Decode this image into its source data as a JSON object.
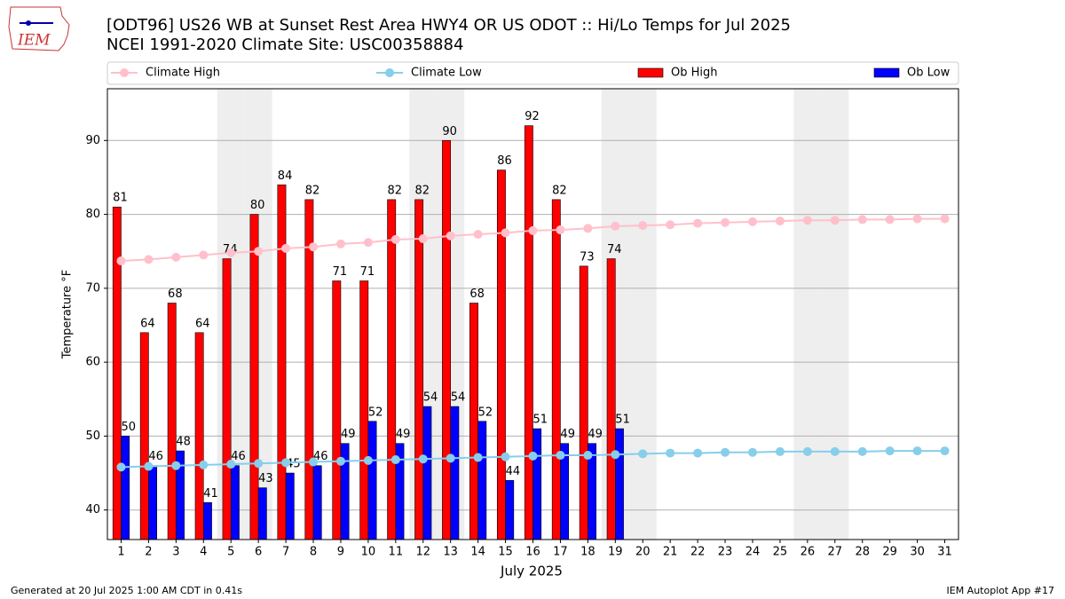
{
  "chart_data": {
    "type": "bar",
    "title": "[ODT96] US26 WB at Sunset Rest Area HWY4 OR US ODOT :: Hi/Lo Temps for Jul 2025",
    "subtitle": "NCEI 1991-2020 Climate Site: USC00358884",
    "x_label": "July 2025",
    "y_label": "Temperature °F",
    "logo_text": "IEM",
    "footer_left": "Generated at 20 Jul 2025 1:00 AM CDT in 0.41s",
    "footer_right": "IEM Autoplot App #17",
    "x": [
      1,
      2,
      3,
      4,
      5,
      6,
      7,
      8,
      9,
      10,
      11,
      12,
      13,
      14,
      15,
      16,
      17,
      18,
      19,
      20,
      21,
      22,
      23,
      24,
      25,
      26,
      27,
      28,
      29,
      30,
      31
    ],
    "xlim": [
      0.5,
      31.5
    ],
    "xticks": [
      1,
      2,
      3,
      4,
      5,
      6,
      7,
      8,
      9,
      10,
      11,
      12,
      13,
      14,
      15,
      16,
      17,
      18,
      19,
      20,
      21,
      22,
      23,
      24,
      25,
      26,
      27,
      28,
      29,
      30,
      31
    ],
    "ylim": [
      36,
      97
    ],
    "yticks": [
      40,
      50,
      60,
      70,
      80,
      90
    ],
    "grid": true,
    "shaded_days": [
      5,
      6,
      12,
      13,
      19,
      20,
      26,
      27
    ],
    "legend_position": "top",
    "series": [
      {
        "name": "Climate High",
        "type": "line",
        "color": "#ffc0cb",
        "values": [
          73.7,
          73.9,
          74.2,
          74.5,
          74.8,
          75.0,
          75.4,
          75.6,
          76.0,
          76.2,
          76.6,
          76.7,
          77.1,
          77.3,
          77.5,
          77.8,
          77.9,
          78.1,
          78.4,
          78.5,
          78.6,
          78.8,
          78.9,
          79.0,
          79.1,
          79.2,
          79.2,
          79.3,
          79.3,
          79.4,
          79.4
        ]
      },
      {
        "name": "Climate Low",
        "type": "line",
        "color": "#87ceeb",
        "values": [
          45.8,
          45.9,
          46.0,
          46.1,
          46.2,
          46.3,
          46.4,
          46.5,
          46.6,
          46.7,
          46.8,
          46.9,
          47.0,
          47.1,
          47.2,
          47.3,
          47.4,
          47.4,
          47.5,
          47.6,
          47.7,
          47.7,
          47.8,
          47.8,
          47.9,
          47.9,
          47.9,
          47.9,
          48.0,
          48.0,
          48.0
        ]
      },
      {
        "name": "Ob High",
        "type": "bar",
        "color": "#ff0000",
        "values": [
          81,
          64,
          68,
          64,
          74,
          80,
          84,
          82,
          71,
          71,
          82,
          82,
          90,
          68,
          86,
          92,
          82,
          73,
          74,
          null,
          null,
          null,
          null,
          null,
          null,
          null,
          null,
          null,
          null,
          null,
          null
        ]
      },
      {
        "name": "Ob Low",
        "type": "bar",
        "color": "#0000ff",
        "values": [
          50,
          46,
          48,
          41,
          46,
          43,
          45,
          46,
          49,
          52,
          49,
          54,
          54,
          52,
          44,
          51,
          49,
          49,
          51,
          null,
          null,
          null,
          null,
          null,
          null,
          null,
          null,
          null,
          null,
          null,
          null
        ]
      }
    ]
  }
}
